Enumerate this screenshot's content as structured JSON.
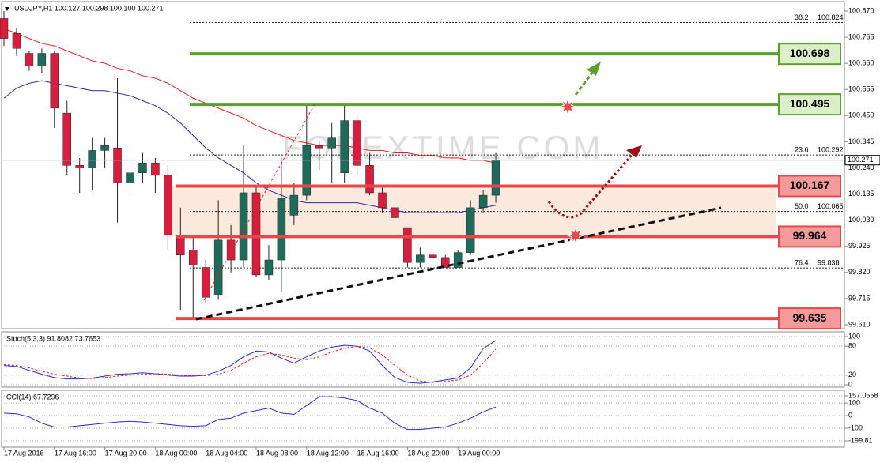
{
  "chart_data": [
    {
      "type": "candlestick",
      "title": "USDJPY,H1  100.127 100.298 100.100 100.271",
      "bull_color": "#1f6b5a",
      "bear_color": "#d81e3c",
      "open": [
        100.84,
        100.78,
        100.7,
        100.65,
        100.7,
        100.46,
        100.25,
        100.24,
        100.31,
        100.32,
        100.18,
        100.22,
        100.26,
        100.21,
        99.97,
        99.91,
        99.84,
        99.73,
        99.95,
        99.87,
        100.14,
        99.81,
        99.87,
        100.05,
        100.13,
        100.33,
        100.32,
        100.22,
        100.43,
        100.25,
        100.14,
        100.08,
        100.0,
        99.86,
        99.89,
        99.88,
        99.84,
        99.9,
        100.08,
        100.13
      ],
      "high": [
        100.87,
        100.8,
        100.71,
        100.72,
        100.71,
        100.51,
        100.28,
        100.36,
        100.36,
        100.6,
        100.31,
        100.3,
        100.28,
        100.25,
        100.08,
        99.97,
        99.87,
        100.11,
        100.01,
        100.33,
        100.17,
        99.93,
        100.28,
        100.18,
        100.49,
        100.35,
        100.42,
        100.49,
        100.45,
        100.3,
        100.16,
        100.09,
        100.0,
        99.92,
        99.89,
        99.89,
        99.91,
        100.11,
        100.15,
        100.3
      ],
      "low": [
        100.73,
        100.69,
        100.63,
        100.62,
        100.4,
        100.21,
        100.14,
        100.15,
        100.24,
        100.02,
        100.13,
        100.18,
        100.14,
        99.91,
        99.67,
        99.64,
        99.7,
        99.71,
        99.82,
        99.84,
        99.8,
        99.79,
        99.74,
        100.01,
        100.11,
        100.23,
        100.18,
        100.18,
        100.21,
        100.13,
        100.06,
        100.03,
        99.84,
        99.84,
        99.88,
        99.84,
        99.84,
        99.89,
        100.06,
        100.1
      ],
      "close": [
        100.76,
        100.72,
        100.65,
        100.7,
        100.48,
        100.25,
        100.24,
        100.31,
        100.33,
        100.18,
        100.22,
        100.26,
        100.21,
        99.97,
        99.89,
        99.85,
        99.72,
        99.95,
        99.87,
        100.14,
        99.81,
        99.87,
        100.12,
        100.13,
        100.33,
        100.32,
        100.36,
        100.43,
        100.25,
        100.14,
        100.08,
        100.04,
        99.86,
        99.89,
        99.88,
        99.84,
        99.9,
        100.08,
        100.13,
        100.271
      ],
      "moving_averages": [
        {
          "color": "#e02020",
          "values": [
            100.8,
            100.78,
            100.76,
            100.74,
            100.73,
            100.71,
            100.69,
            100.67,
            100.66,
            100.64,
            100.63,
            100.61,
            100.6,
            100.58,
            100.55,
            100.52,
            100.5,
            100.48,
            100.46,
            100.44,
            100.41,
            100.39,
            100.37,
            100.35,
            100.34,
            100.33,
            100.33,
            100.33,
            100.32,
            100.31,
            100.31,
            100.3,
            100.3,
            100.29,
            100.29,
            100.28,
            100.28,
            100.27,
            100.27,
            100.26
          ]
        },
        {
          "color": "#2a2aa0",
          "values": [
            100.52,
            100.56,
            100.58,
            100.59,
            100.58,
            100.57,
            100.56,
            100.55,
            100.55,
            100.54,
            100.53,
            100.51,
            100.49,
            100.46,
            100.42,
            100.37,
            100.32,
            100.28,
            100.25,
            100.22,
            100.18,
            100.15,
            100.13,
            100.11,
            100.1,
            100.1,
            100.1,
            100.1,
            100.1,
            100.09,
            100.08,
            100.07,
            100.06,
            100.06,
            100.06,
            100.06,
            100.06,
            100.07,
            100.08,
            100.09
          ]
        }
      ],
      "ylim": [
        99.594,
        100.908
      ],
      "yticks": [
        {
          "value": 100.87,
          "label": "100.870"
        },
        100.765,
        {
          "value": 100.66,
          "label": "100.660"
        },
        100.555,
        {
          "value": 100.45,
          "label": "100.450"
        },
        100.345,
        {
          "value": 100.24,
          "label": "100.240"
        },
        100.135,
        {
          "value": 100.03,
          "label": "100.030"
        },
        99.925,
        {
          "value": 99.82,
          "label": "99.820"
        },
        99.715,
        {
          "value": 99.61,
          "label": "99.610"
        }
      ],
      "current_price": 100.271,
      "levels": [
        {
          "value": 100.698,
          "color": "#5aa02c"
        },
        {
          "value": 100.495,
          "color": "#5aa02c"
        },
        {
          "value": 100.167,
          "color": "#e84848"
        },
        {
          "value": 99.964,
          "color": "#e84848"
        },
        {
          "value": 99.635,
          "color": "#e84848"
        }
      ],
      "fibs": [
        {
          "level": "38.2",
          "value": 100.824
        },
        {
          "level": "23.6",
          "value": 100.292
        },
        {
          "level": "50.0",
          "value": 100.065
        },
        {
          "level": "76.4",
          "value": 99.838
        }
      ],
      "watermark": "FOREXTIME.COM",
      "x_labels": [
        "17 Aug 2016",
        "17 Aug 16:00",
        "17 Aug 20:00",
        "18 Aug 00:00",
        "18 Aug 04:00",
        "18 Aug 08:00",
        "18 Aug 12:00",
        "18 Aug 16:00",
        "18 Aug 20:00",
        "19 Aug 00:00"
      ]
    },
    {
      "type": "line",
      "title": "Stoch(5,3,3) 91.8082 73.7653",
      "series": [
        {
          "color": "#2a2ad0",
          "values": [
            40,
            38,
            30,
            22,
            15,
            12,
            12,
            14,
            18,
            22,
            23,
            25,
            23,
            20,
            18,
            18,
            20,
            28,
            40,
            58,
            70,
            68,
            55,
            45,
            58,
            70,
            78,
            82,
            80,
            70,
            40,
            15,
            5,
            3,
            6,
            10,
            14,
            35,
            75,
            91.8082
          ]
        },
        {
          "color": "#e02020",
          "dashed": true,
          "values": [
            42,
            40,
            35,
            28,
            22,
            18,
            14,
            13,
            15,
            18,
            20,
            22,
            23,
            22,
            20,
            19,
            19,
            22,
            30,
            45,
            58,
            65,
            62,
            55,
            52,
            58,
            68,
            76,
            80,
            76,
            62,
            40,
            20,
            8,
            5,
            7,
            10,
            20,
            45,
            73.7653
          ]
        }
      ],
      "ylim": [
        -4.9,
        109.8
      ],
      "yticks": [
        0,
        20,
        80,
        100
      ]
    },
    {
      "type": "line",
      "title": "CCI(14) 67.7296",
      "series": [
        {
          "color": "#2a2ad0",
          "values": [
            20,
            15,
            -10,
            -60,
            -90,
            -90,
            -80,
            -70,
            -60,
            -50,
            -45,
            -50,
            -60,
            -70,
            -80,
            -85,
            -80,
            -30,
            -20,
            20,
            40,
            60,
            20,
            10,
            80,
            150,
            150,
            140,
            120,
            60,
            20,
            -60,
            -110,
            -110,
            -100,
            -90,
            -60,
            -20,
            30,
            67.7296
          ]
        }
      ],
      "ylim": [
        -249.9,
        200.9
      ],
      "yticks": [
        157.0558,
        100,
        0,
        -100,
        -199.81
      ]
    }
  ]
}
